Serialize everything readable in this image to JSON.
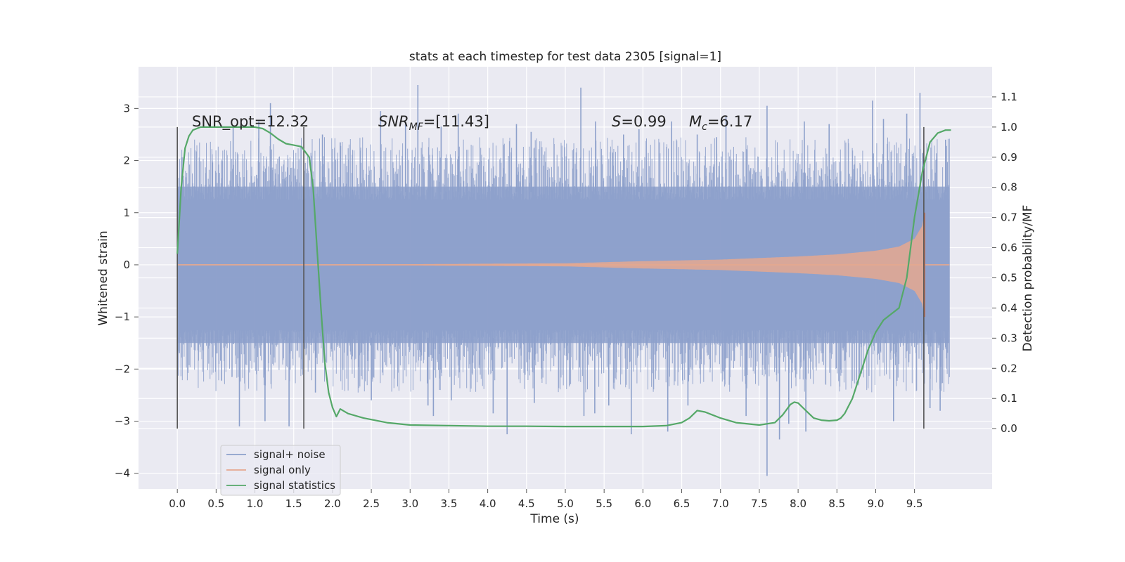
{
  "chart_data": {
    "type": "line",
    "title": "stats at each timestep for test data 2305 [signal=1]",
    "xlabel": "Time (s)",
    "ylabel": "Whitened strain",
    "y2label": "Detection probability/MF",
    "xlim": [
      -0.5,
      10.5
    ],
    "ylim": [
      -4.3,
      3.8
    ],
    "y2lim": [
      -0.2,
      1.2
    ],
    "grid": true,
    "legend_position": "lower-left",
    "x_ticks": [
      "0.0",
      "0.5",
      "1.0",
      "1.5",
      "2.0",
      "2.5",
      "3.0",
      "3.5",
      "4.0",
      "4.5",
      "5.0",
      "5.5",
      "6.0",
      "6.5",
      "7.0",
      "7.5",
      "8.0",
      "8.5",
      "9.0",
      "9.5"
    ],
    "y_ticks": [
      "−4",
      "−3",
      "−2",
      "−1",
      "0",
      "1",
      "2",
      "3"
    ],
    "y2_ticks": [
      "0.0",
      "0.1",
      "0.2",
      "0.3",
      "0.4",
      "0.5",
      "0.6",
      "0.7",
      "0.8",
      "0.9",
      "1.0",
      "1.1"
    ],
    "annotations": {
      "snr_opt": "SNR_opt=12.32",
      "snr_mf_main": "SNR",
      "snr_mf_sub": "MF",
      "snr_mf_rest": "=[11.43]",
      "s_main": "S",
      "s_rest": "=0.99",
      "mc_main": "M",
      "mc_sub": "c",
      "mc_rest": "=6.17"
    },
    "vertical_markers": [
      0.0,
      1.63,
      9.62
    ],
    "series": [
      {
        "name": "signal+ noise",
        "color": "#8da0cb",
        "kind": "noise",
        "x_range": [
          0.0,
          9.95
        ],
        "typical_envelope": [
          -1.5,
          1.5
        ],
        "peaks": [
          [
            0.45,
            2.0
          ],
          [
            0.72,
            2.65
          ],
          [
            1.05,
            2.75
          ],
          [
            1.2,
            3.1
          ],
          [
            1.87,
            2.5
          ],
          [
            2.1,
            2.35
          ],
          [
            2.62,
            2.95
          ],
          [
            2.94,
            2.75
          ],
          [
            3.1,
            3.45
          ],
          [
            3.4,
            2.65
          ],
          [
            3.62,
            2.9
          ],
          [
            4.37,
            2.7
          ],
          [
            4.56,
            2.55
          ],
          [
            5.2,
            3.4
          ],
          [
            5.39,
            2.75
          ],
          [
            5.75,
            2.5
          ],
          [
            5.95,
            2.6
          ],
          [
            6.37,
            2.75
          ],
          [
            6.7,
            2.5
          ],
          [
            6.95,
            2.45
          ],
          [
            7.07,
            2.85
          ],
          [
            7.6,
            3.05
          ],
          [
            8.08,
            2.75
          ],
          [
            8.4,
            2.7
          ],
          [
            8.96,
            3.15
          ],
          [
            9.1,
            2.8
          ],
          [
            9.4,
            2.9
          ],
          [
            9.57,
            3.3
          ],
          [
            9.9,
            2.4
          ]
        ],
        "troughs": [
          [
            0.8,
            -3.1
          ],
          [
            1.13,
            -3.0
          ],
          [
            1.44,
            -3.1
          ],
          [
            1.78,
            -2.45
          ],
          [
            2.5,
            -2.6
          ],
          [
            3.23,
            -2.7
          ],
          [
            3.3,
            -2.9
          ],
          [
            3.53,
            -2.6
          ],
          [
            4.07,
            -2.85
          ],
          [
            4.25,
            -3.25
          ],
          [
            4.6,
            -2.65
          ],
          [
            5.24,
            -2.9
          ],
          [
            5.38,
            -2.85
          ],
          [
            5.56,
            -2.7
          ],
          [
            5.85,
            -3.25
          ],
          [
            6.32,
            -3.2
          ],
          [
            6.58,
            -2.7
          ],
          [
            7.33,
            -2.9
          ],
          [
            7.6,
            -4.05
          ],
          [
            7.76,
            -3.35
          ],
          [
            7.88,
            -3.05
          ],
          [
            8.1,
            -3.2
          ],
          [
            9.23,
            -3.0
          ],
          [
            9.7,
            -2.75
          ],
          [
            9.83,
            -2.8
          ]
        ]
      },
      {
        "name": "signal only",
        "color": "#e5a88f",
        "kind": "chirp",
        "x_range": [
          0.0,
          9.95
        ],
        "merger_time": 9.63,
        "peak_amplitude": 1.0,
        "envelope": [
          [
            0.0,
            0.008
          ],
          [
            3.0,
            0.012
          ],
          [
            5.0,
            0.03
          ],
          [
            6.0,
            0.07
          ],
          [
            7.0,
            0.1
          ],
          [
            8.0,
            0.16
          ],
          [
            8.5,
            0.2
          ],
          [
            9.0,
            0.27
          ],
          [
            9.3,
            0.35
          ],
          [
            9.5,
            0.5
          ],
          [
            9.6,
            0.75
          ],
          [
            9.63,
            1.0
          ]
        ]
      },
      {
        "name": "signal statistics",
        "color": "#55a868",
        "axis": "right",
        "x": [
          0.0,
          0.05,
          0.1,
          0.15,
          0.2,
          0.3,
          0.5,
          0.8,
          1.0,
          1.1,
          1.2,
          1.3,
          1.4,
          1.5,
          1.6,
          1.7,
          1.75,
          1.8,
          1.85,
          1.9,
          1.95,
          2.0,
          2.05,
          2.1,
          2.2,
          2.4,
          2.7,
          3.0,
          3.5,
          4.0,
          4.5,
          5.0,
          5.5,
          6.0,
          6.3,
          6.5,
          6.6,
          6.7,
          6.8,
          6.9,
          7.0,
          7.2,
          7.5,
          7.7,
          7.8,
          7.9,
          7.95,
          8.0,
          8.1,
          8.2,
          8.3,
          8.4,
          8.5,
          8.55,
          8.6,
          8.7,
          8.8,
          8.9,
          9.0,
          9.1,
          9.2,
          9.3,
          9.4,
          9.5,
          9.6,
          9.7,
          9.8,
          9.9,
          9.97
        ],
        "values": [
          0.58,
          0.8,
          0.93,
          0.97,
          0.99,
          1.0,
          1.0,
          1.0,
          1.0,
          0.995,
          0.98,
          0.96,
          0.945,
          0.94,
          0.935,
          0.9,
          0.8,
          0.6,
          0.4,
          0.22,
          0.12,
          0.07,
          0.04,
          0.065,
          0.05,
          0.035,
          0.02,
          0.012,
          0.01,
          0.008,
          0.008,
          0.007,
          0.007,
          0.007,
          0.01,
          0.02,
          0.035,
          0.06,
          0.055,
          0.045,
          0.035,
          0.02,
          0.012,
          0.02,
          0.045,
          0.08,
          0.088,
          0.085,
          0.06,
          0.035,
          0.028,
          0.026,
          0.028,
          0.035,
          0.05,
          0.1,
          0.18,
          0.26,
          0.32,
          0.36,
          0.38,
          0.4,
          0.5,
          0.7,
          0.85,
          0.95,
          0.98,
          0.99,
          0.99
        ]
      }
    ]
  }
}
